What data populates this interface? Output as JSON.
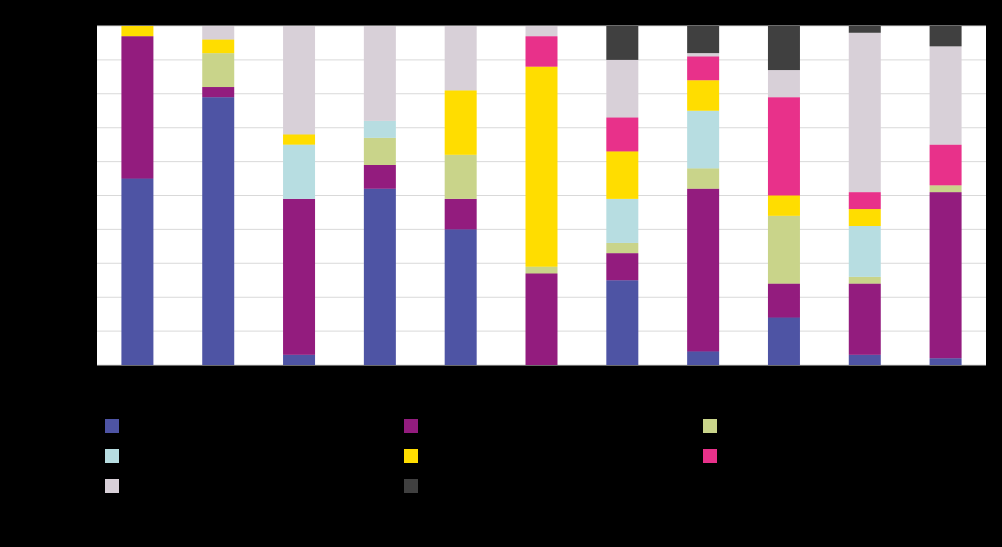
{
  "chart_data": {
    "type": "stacked-bar",
    "categories": [
      null,
      null,
      null,
      null,
      null,
      null,
      null,
      null,
      null,
      null,
      null
    ],
    "ylim": [
      0,
      100
    ],
    "yticks": [
      0,
      10,
      20,
      30,
      40,
      50,
      60,
      70,
      80,
      90,
      100
    ],
    "grid": true,
    "series": [
      {
        "color": "#4e54a4",
        "values": [
          55,
          79,
          3,
          52,
          40,
          0,
          25,
          4,
          14,
          3,
          2
        ]
      },
      {
        "color": "#931c7e",
        "values": [
          42,
          3,
          46,
          7,
          9,
          27,
          8,
          48,
          10,
          21,
          49
        ]
      },
      {
        "color": "#c9d48a",
        "values": [
          0,
          10,
          0,
          8,
          13,
          2,
          3,
          6,
          20,
          2,
          2
        ]
      },
      {
        "color": "#b7dde1",
        "values": [
          0,
          0,
          16,
          5,
          0,
          0,
          13,
          17,
          0,
          15,
          0
        ]
      },
      {
        "color": "#ffdd00",
        "values": [
          3,
          4,
          3,
          0,
          19,
          59,
          14,
          9,
          6,
          5,
          0
        ]
      },
      {
        "color": "#e8318a",
        "values": [
          0,
          0,
          0,
          0,
          0,
          9,
          10,
          7,
          29,
          5,
          12
        ]
      },
      {
        "color": "#d8d0d8",
        "values": [
          0,
          4,
          32,
          28,
          19,
          3,
          17,
          1,
          8,
          47,
          29
        ]
      },
      {
        "color": "#404040",
        "values": [
          0,
          0,
          0,
          0,
          0,
          0,
          10,
          8,
          13,
          2,
          6
        ]
      }
    ]
  }
}
